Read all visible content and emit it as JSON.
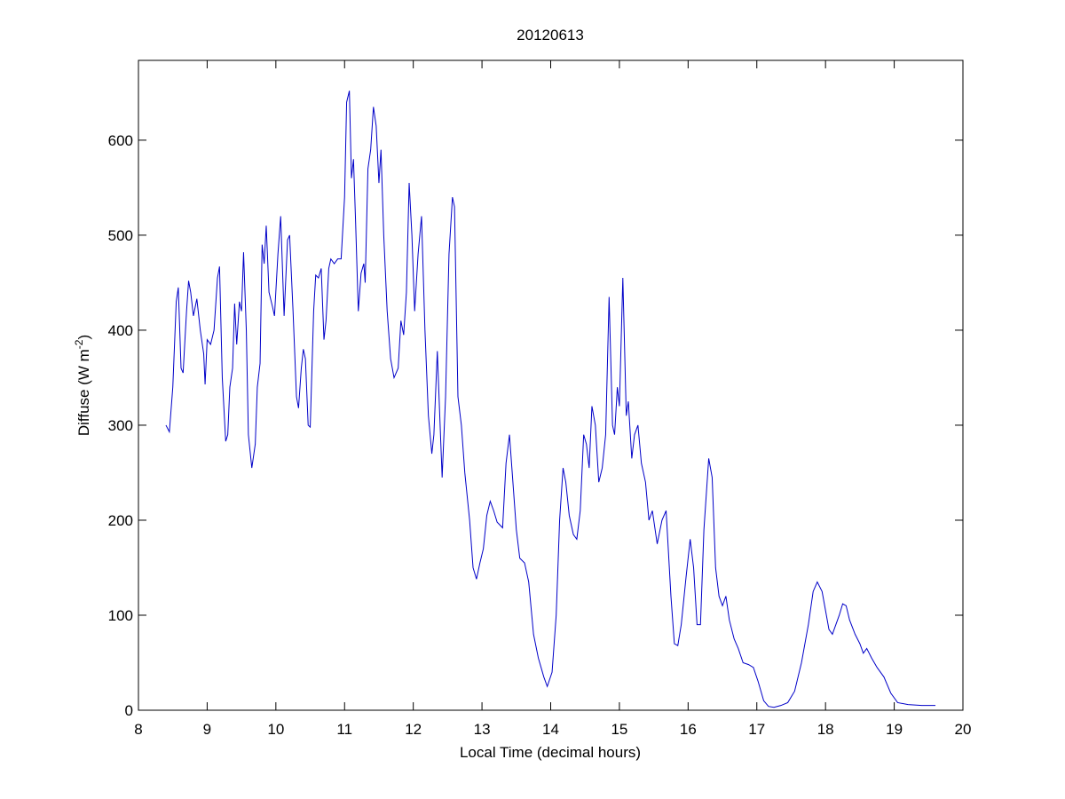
{
  "chart_data": {
    "type": "line",
    "title": "20120613",
    "xlabel": "Local Time (decimal hours)",
    "ylabel": [
      "Diffuse (W m",
      "-2",
      ")"
    ],
    "xlim": [
      8,
      20
    ],
    "xticks": [
      8,
      9,
      10,
      11,
      12,
      13,
      14,
      15,
      16,
      17,
      18,
      19,
      20
    ],
    "ylim": [
      0,
      684
    ],
    "yticks": [
      0,
      100,
      200,
      300,
      400,
      500,
      600
    ],
    "grid": false,
    "series": [
      {
        "color": "#0000c8",
        "x": [
          8.4,
          8.45,
          8.5,
          8.55,
          8.58,
          8.62,
          8.65,
          8.7,
          8.73,
          8.76,
          8.8,
          8.85,
          8.9,
          8.95,
          8.97,
          9.0,
          9.05,
          9.1,
          9.15,
          9.18,
          9.22,
          9.27,
          9.3,
          9.33,
          9.37,
          9.4,
          9.43,
          9.47,
          9.5,
          9.53,
          9.57,
          9.6,
          9.65,
          9.7,
          9.73,
          9.77,
          9.8,
          9.83,
          9.86,
          9.9,
          9.95,
          9.98,
          10.03,
          10.07,
          10.12,
          10.17,
          10.2,
          10.25,
          10.3,
          10.33,
          10.37,
          10.4,
          10.43,
          10.47,
          10.5,
          10.55,
          10.58,
          10.62,
          10.66,
          10.7,
          10.73,
          10.77,
          10.8,
          10.85,
          10.9,
          10.95,
          11.0,
          11.03,
          11.07,
          11.1,
          11.13,
          11.16,
          11.2,
          11.24,
          11.28,
          11.3,
          11.34,
          11.38,
          11.42,
          11.46,
          11.5,
          11.53,
          11.57,
          11.62,
          11.67,
          11.72,
          11.78,
          11.82,
          11.86,
          11.9,
          11.94,
          11.98,
          12.02,
          12.07,
          12.12,
          12.17,
          12.22,
          12.27,
          12.3,
          12.35,
          12.38,
          12.42,
          12.47,
          12.52,
          12.57,
          12.6,
          12.65,
          12.7,
          12.75,
          12.82,
          12.87,
          12.92,
          12.97,
          13.02,
          13.07,
          13.12,
          13.17,
          13.22,
          13.3,
          13.35,
          13.4,
          13.45,
          13.5,
          13.55,
          13.62,
          13.68,
          13.75,
          13.82,
          13.9,
          13.95,
          14.02,
          14.08,
          14.13,
          14.18,
          14.22,
          14.27,
          14.33,
          14.38,
          14.43,
          14.48,
          14.52,
          14.56,
          14.6,
          14.65,
          14.7,
          14.75,
          14.8,
          14.85,
          14.9,
          14.93,
          14.97,
          15.0,
          15.05,
          15.1,
          15.13,
          15.18,
          15.22,
          15.27,
          15.32,
          15.38,
          15.43,
          15.48,
          15.55,
          15.62,
          15.68,
          15.75,
          15.8,
          15.85,
          15.9,
          15.97,
          16.03,
          16.08,
          16.13,
          16.18,
          16.23,
          16.3,
          16.35,
          16.4,
          16.45,
          16.5,
          16.55,
          16.6,
          16.67,
          16.73,
          16.8,
          16.88,
          16.95,
          17.02,
          17.1,
          17.17,
          17.25,
          17.35,
          17.45,
          17.55,
          17.65,
          17.75,
          17.82,
          17.88,
          17.95,
          18.0,
          18.05,
          18.1,
          18.15,
          18.2,
          18.25,
          18.3,
          18.35,
          18.43,
          18.5,
          18.55,
          18.6,
          18.67,
          18.75,
          18.85,
          18.95,
          19.05,
          19.2,
          19.4,
          19.6
        ],
        "values": [
          300,
          293,
          340,
          430,
          445,
          360,
          355,
          420,
          452,
          440,
          415,
          433,
          400,
          375,
          343,
          390,
          385,
          400,
          455,
          467,
          350,
          283,
          290,
          340,
          360,
          428,
          385,
          430,
          420,
          482,
          400,
          290,
          255,
          280,
          340,
          365,
          490,
          470,
          510,
          440,
          425,
          415,
          480,
          520,
          415,
          495,
          500,
          420,
          330,
          318,
          360,
          380,
          370,
          300,
          298,
          420,
          458,
          455,
          465,
          390,
          410,
          465,
          475,
          470,
          475,
          475,
          540,
          640,
          652,
          560,
          580,
          515,
          420,
          460,
          470,
          450,
          570,
          590,
          635,
          615,
          555,
          590,
          500,
          420,
          370,
          350,
          360,
          410,
          395,
          440,
          555,
          500,
          420,
          480,
          520,
          400,
          310,
          270,
          290,
          378,
          320,
          245,
          330,
          480,
          540,
          530,
          330,
          300,
          250,
          200,
          150,
          138,
          155,
          170,
          205,
          220,
          210,
          198,
          192,
          260,
          290,
          240,
          190,
          160,
          155,
          135,
          80,
          55,
          35,
          25,
          40,
          100,
          200,
          255,
          240,
          205,
          185,
          180,
          210,
          290,
          280,
          255,
          320,
          300,
          240,
          255,
          290,
          435,
          300,
          290,
          340,
          320,
          455,
          310,
          325,
          265,
          290,
          300,
          260,
          240,
          200,
          210,
          175,
          200,
          210,
          120,
          70,
          68,
          90,
          140,
          180,
          150,
          90,
          90,
          190,
          265,
          245,
          150,
          120,
          110,
          120,
          95,
          75,
          65,
          50,
          48,
          45,
          30,
          10,
          4,
          3,
          5,
          8,
          20,
          50,
          90,
          125,
          135,
          125,
          105,
          85,
          80,
          90,
          100,
          112,
          110,
          95,
          80,
          70,
          60,
          65,
          55,
          45,
          35,
          18,
          8,
          6,
          5,
          5
        ]
      }
    ]
  }
}
